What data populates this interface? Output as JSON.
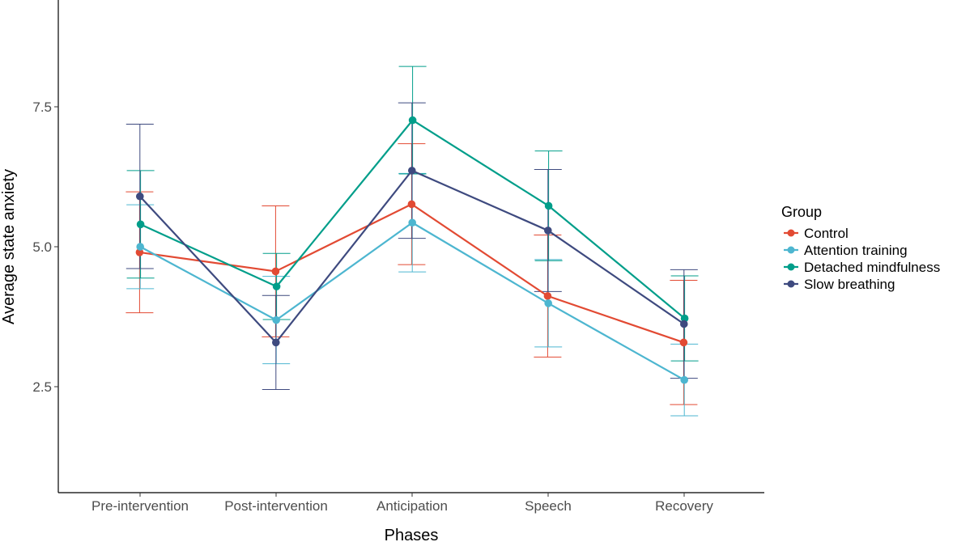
{
  "chart_data": {
    "type": "line",
    "xlabel": "Phases",
    "ylabel": "Average state anxiety",
    "categories": [
      "Pre-intervention",
      "Post-intervention",
      "Anticipation",
      "Speech",
      "Recovery"
    ],
    "yticks": [
      2.5,
      5.0,
      7.5
    ],
    "ytick_labels": [
      "2.5",
      "5.0",
      "7.5"
    ],
    "ylim": [
      0.7,
      9.4
    ],
    "grid": false,
    "legend": {
      "title": "Group",
      "position": "right"
    },
    "series": [
      {
        "name": "Control",
        "color": "#E24A33",
        "values": [
          4.9,
          4.56,
          5.76,
          4.12,
          3.29
        ],
        "error_low": [
          3.82,
          3.39,
          4.68,
          3.03,
          2.18
        ],
        "error_high": [
          5.98,
          5.73,
          6.84,
          5.21,
          4.4
        ]
      },
      {
        "name": "Attention training",
        "color": "#4DB6D0",
        "values": [
          5.0,
          3.69,
          5.43,
          3.99,
          2.62
        ],
        "error_low": [
          4.25,
          2.91,
          4.55,
          3.21,
          1.98
        ],
        "error_high": [
          5.75,
          4.47,
          6.31,
          4.77,
          3.26
        ]
      },
      {
        "name": "Detached mindfulness",
        "color": "#009E8A",
        "values": [
          5.4,
          4.29,
          7.26,
          5.73,
          3.72
        ],
        "error_low": [
          4.44,
          3.7,
          6.3,
          4.75,
          2.96
        ],
        "error_high": [
          6.36,
          4.88,
          8.22,
          6.71,
          4.48
        ]
      },
      {
        "name": "Slow breathing",
        "color": "#3E4A7F",
        "values": [
          5.9,
          3.29,
          6.36,
          5.29,
          3.62
        ],
        "error_low": [
          4.61,
          2.45,
          5.15,
          4.2,
          2.65
        ],
        "error_high": [
          7.19,
          4.13,
          7.57,
          6.38,
          4.59
        ]
      }
    ]
  }
}
